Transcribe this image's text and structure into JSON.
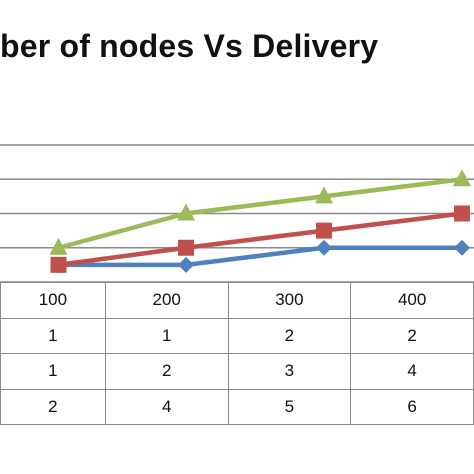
{
  "chart_data": {
    "type": "line",
    "title": "ber of nodes Vs Delivery",
    "categories": [
      "100",
      "200",
      "300",
      "400"
    ],
    "series": [
      {
        "color": "#4f81bd",
        "marker": "diamond",
        "values": [
          1,
          1,
          2,
          2
        ]
      },
      {
        "color": "#c0504d",
        "marker": "square",
        "values": [
          1,
          2,
          3,
          4
        ]
      },
      {
        "color": "#9bbb59",
        "marker": "triangle",
        "values": [
          2,
          4,
          5,
          6
        ]
      }
    ],
    "ylim": [
      0,
      8
    ],
    "grid": true,
    "data_table": true
  }
}
